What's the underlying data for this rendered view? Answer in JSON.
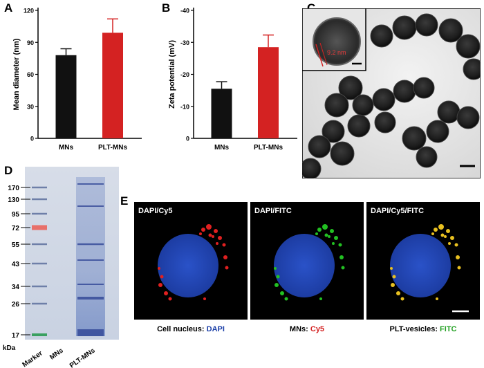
{
  "panels": {
    "a": "A",
    "b": "B",
    "c": "C",
    "d": "D",
    "e": "E"
  },
  "chart_data": [
    {
      "type": "bar",
      "panel": "A",
      "categories": [
        "MNs",
        "PLT-MNs"
      ],
      "values": [
        78,
        99
      ],
      "errors": [
        6,
        13
      ],
      "ylabel": "Mean diameter (nm)",
      "yticks": [
        "0",
        "30",
        "60",
        "90",
        "120"
      ],
      "ylim": [
        0,
        120
      ],
      "colors": [
        "#111111",
        "#d42222"
      ]
    },
    {
      "type": "bar",
      "panel": "B",
      "categories": [
        "MNs",
        "PLT-MNs"
      ],
      "values": [
        -15.5,
        -28.5
      ],
      "errors": [
        2.2,
        3.8
      ],
      "ylabel": "Zeta potential (mV)",
      "yticks": [
        "0",
        "-10",
        "-20",
        "-30",
        "-40"
      ],
      "ylim": [
        0,
        -40
      ],
      "colors": [
        "#111111",
        "#d42222"
      ]
    }
  ],
  "tem": {
    "inset_label": "9.2 nm"
  },
  "gel": {
    "markers": [
      "170",
      "130",
      "95",
      "72",
      "55",
      "43",
      "34",
      "26",
      "17"
    ],
    "unit": "kDa",
    "lanes": [
      "Marker",
      "MNs",
      "PLT-MNs"
    ]
  },
  "fluor": {
    "images": [
      {
        "title": "DAPI/Cy5",
        "caption_pre": "Cell nucleus: ",
        "caption_colored": "DAPI",
        "caption_color": "#1b3fa8"
      },
      {
        "title": "DAPI/FITC",
        "caption_pre": "MNs: ",
        "caption_colored": "Cy5",
        "caption_color": "#d42222"
      },
      {
        "title": "DAPI/Cy5/FITC",
        "caption_pre": "PLT-vesicles: ",
        "caption_colored": "FITC",
        "caption_color": "#22a022"
      }
    ]
  }
}
